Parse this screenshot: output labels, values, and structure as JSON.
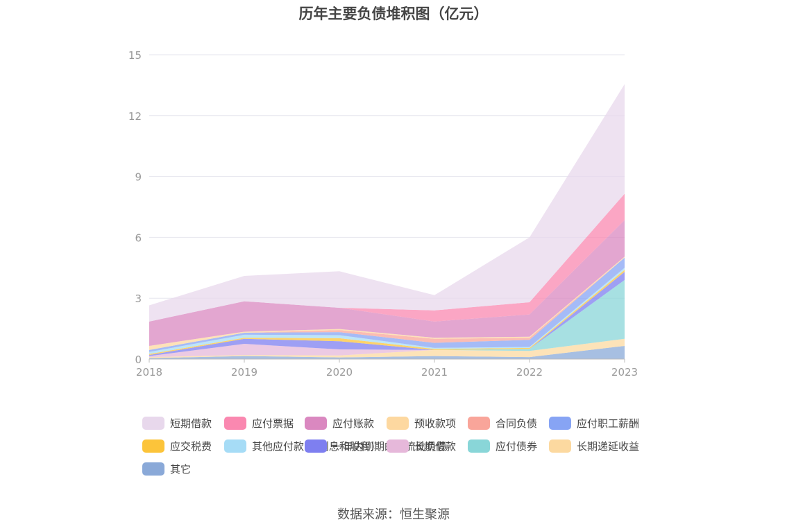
{
  "chart_data": {
    "type": "area",
    "stacked": true,
    "title": "历年主要负债堆积图（亿元）",
    "x": [
      "2018",
      "2019",
      "2020",
      "2021",
      "2022",
      "2023"
    ],
    "y_ticks": [
      "0",
      "3",
      "6",
      "9",
      "12",
      "15"
    ],
    "ylim": [
      0,
      15
    ],
    "grid": "horizontal",
    "legend_position": "bottom",
    "series": [
      {
        "name": "其它",
        "color": "#8aa9d8",
        "values": [
          0.05,
          0.15,
          0.08,
          0.15,
          0.1,
          0.65
        ]
      },
      {
        "name": "长期递延收益",
        "color": "#fcd9a0",
        "values": [
          0.05,
          0.05,
          0.1,
          0.3,
          0.3,
          0.35
        ]
      },
      {
        "name": "应付债券",
        "color": "#89d6d8",
        "values": [
          0,
          0,
          0,
          0,
          0.1,
          2.9
        ]
      },
      {
        "name": "长期借款",
        "color": "#e6b8da",
        "values": [
          0.05,
          0.55,
          0.3,
          0,
          0,
          0
        ]
      },
      {
        "name": "一年内到期的非流动负债",
        "color": "#7e7ff0",
        "values": [
          0.05,
          0.25,
          0.4,
          0,
          0,
          0.4
        ]
      },
      {
        "name": "应交税费",
        "color": "#fcc43a",
        "values": [
          0.05,
          0.05,
          0.15,
          0.05,
          0.05,
          0.1
        ]
      },
      {
        "name": "其他应付款(含利息和股利)",
        "color": "#a6dcf6",
        "values": [
          0.1,
          0.15,
          0.15,
          0.05,
          0.05,
          0.1
        ]
      },
      {
        "name": "应付职工薪酬",
        "color": "#87a4f4",
        "values": [
          0.1,
          0.1,
          0.15,
          0.25,
          0.35,
          0.5
        ]
      },
      {
        "name": "合同负债",
        "color": "#f9a59a",
        "values": [
          0,
          0,
          0.1,
          0.2,
          0.1,
          0
        ]
      },
      {
        "name": "预收款项",
        "color": "#fdd8a0",
        "values": [
          0.2,
          0.05,
          0.05,
          0.05,
          0.05,
          0.05
        ]
      },
      {
        "name": "应付账款",
        "color": "#da88c0",
        "values": [
          1.2,
          1.5,
          1.05,
          0.8,
          1.1,
          1.8
        ]
      },
      {
        "name": "应付票据",
        "color": "#fa88b0",
        "values": [
          0,
          0,
          0,
          0.55,
          0.6,
          1.3
        ]
      },
      {
        "name": "短期借款",
        "color": "#e8d8ec",
        "values": [
          0.8,
          1.25,
          1.8,
          0.75,
          3.2,
          5.4
        ]
      }
    ],
    "legend_order": [
      "短期借款",
      "应付票据",
      "应付账款",
      "预收款项",
      "合同负债",
      "应付职工薪酬",
      "应交税费",
      "其他应付款(含利息和股利)",
      "一年内到期的非流动负债",
      "长期借款",
      "应付债券",
      "长期递延收益",
      "其它"
    ]
  },
  "source_text": "数据来源：恒生聚源"
}
